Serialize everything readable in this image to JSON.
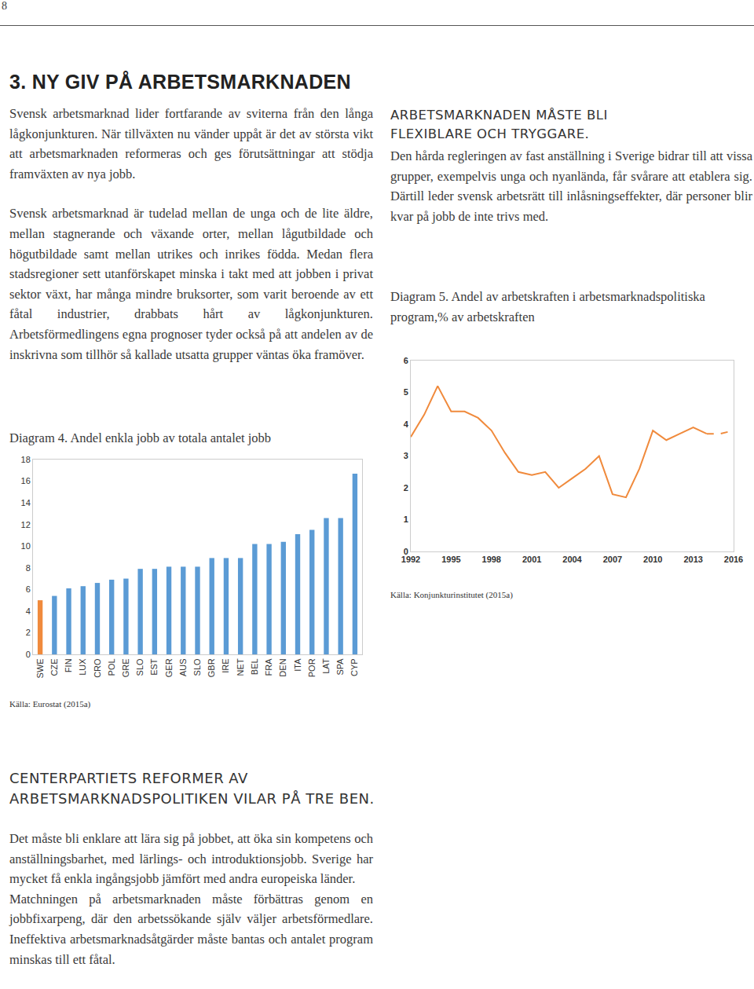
{
  "page_number": "8",
  "heading": "3. NY GIV PÅ ARBETSMARKNADEN",
  "intro_paragraphs": [
    "Svensk arbetsmarknad lider fortfarande av sviterna från den långa lågkonjunkturen. När tillväxten nu vänder uppåt är det av största vikt att arbetsmarknaden reformeras och ges förutsättningar att stödja framväxten av nya jobb.",
    "Svensk arbetsmarknad är tudelad mellan de unga och de lite äldre, mellan stagnerande och växande orter, mellan lågutbildade och högutbildade samt mellan utrikes och inrikes födda. Medan flera stadsregioner sett utanförskapet minska i takt med att jobben i privat sektor växt, har många mindre bruksorter, som varit beroende av ett fåtal industrier, drabbats hårt av lågkonjunkturen. Arbetsförmedlingens egna prognoser tyder också på att andelen av de inskrivna som tillhör så kallade utsatta grupper väntas öka framöver."
  ],
  "right_section": {
    "heading": "ARBETSMARKNADEN MÅSTE BLI FLEXIBLARE OCH TRYGGARE.",
    "paragraph": "Den hårda regleringen av fast anställning i Sverige bidrar till att vissa grupper, exempelvis unga och nyanlända, får svårare att etablera sig. Därtill leder svensk arbetsrätt till inlåsningseffekter, där personer blir kvar på jobb de inte trivs med."
  },
  "chart_data": [
    {
      "type": "bar",
      "title": "Diagram 4. Andel enkla jobb av totala antalet jobb",
      "source": "Källa: Eurostat (2015a)",
      "categories": [
        "SWE",
        "CZE",
        "FIN",
        "LUX",
        "CRO",
        "POL",
        "GRE",
        "SLO",
        "EST",
        "GER",
        "AUS",
        "SLO",
        "GBR",
        "IRE",
        "NET",
        "BEL",
        "FRA",
        "DEN",
        "ITA",
        "POR",
        "LAT",
        "SPA",
        "CYP"
      ],
      "values": [
        5.0,
        5.4,
        6.1,
        6.3,
        6.6,
        6.9,
        7.0,
        7.9,
        7.9,
        8.1,
        8.1,
        8.1,
        8.9,
        8.9,
        8.9,
        10.2,
        10.2,
        10.4,
        11.1,
        11.5,
        12.6,
        12.6,
        16.7
      ],
      "colors": [
        "#f08a3c",
        "#5b9bd5",
        "#5b9bd5",
        "#5b9bd5",
        "#5b9bd5",
        "#5b9bd5",
        "#5b9bd5",
        "#5b9bd5",
        "#5b9bd5",
        "#5b9bd5",
        "#5b9bd5",
        "#5b9bd5",
        "#5b9bd5",
        "#5b9bd5",
        "#5b9bd5",
        "#5b9bd5",
        "#5b9bd5",
        "#5b9bd5",
        "#5b9bd5",
        "#5b9bd5",
        "#5b9bd5",
        "#5b9bd5",
        "#5b9bd5"
      ],
      "ylim": [
        0,
        18
      ],
      "yticks": [
        0,
        2,
        4,
        6,
        8,
        10,
        12,
        14,
        16,
        18
      ],
      "grid": false
    },
    {
      "type": "line",
      "title": "Diagram 5. Andel av arbetskraften i arbetsmarknadspolitiska program,% av arbetskraften",
      "source": "Källa: Konjunkturinstitutet (2015a)",
      "x": [
        1992,
        1993,
        1994,
        1995,
        1996,
        1997,
        1998,
        1999,
        2000,
        2001,
        2002,
        2003,
        2004,
        2005,
        2006,
        2007,
        2008,
        2009,
        2010,
        2011,
        2012,
        2013,
        2014,
        2015,
        2016
      ],
      "series": [
        {
          "color": "#f08a3c",
          "line_style": "solid",
          "values": [
            3.6,
            4.3,
            5.2,
            4.4,
            4.4,
            4.2,
            3.8,
            3.1,
            2.5,
            2.4,
            2.5,
            2.0,
            2.3,
            2.6,
            3.0,
            1.8,
            1.7,
            2.6,
            3.8,
            3.5,
            3.7,
            3.9,
            3.7,
            null,
            null
          ]
        },
        {
          "color": "#f08a3c",
          "line_style": "dash",
          "values": [
            null,
            null,
            null,
            null,
            null,
            null,
            null,
            null,
            null,
            null,
            null,
            null,
            null,
            null,
            null,
            null,
            null,
            null,
            null,
            null,
            null,
            null,
            3.7,
            3.7,
            3.8
          ]
        }
      ],
      "xlim": [
        1992,
        2016
      ],
      "xticks": [
        1992,
        1995,
        1998,
        2001,
        2004,
        2007,
        2010,
        2013,
        2016
      ],
      "ylim": [
        0,
        6
      ],
      "yticks": [
        0,
        1,
        2,
        3,
        4,
        5,
        6
      ],
      "grid": false
    }
  ],
  "reform_section": {
    "heading": "CENTERPARTIETS REFORMER AV ARBETSMARKNADSPOLITIKEN VILAR PÅ TRE BEN.",
    "paragraphs": [
      "Det måste bli enklare att lära sig på jobbet, att öka sin kompetens och anställningsbarhet, med lärlings- och introduktionsjobb. Sverige har mycket få enkla ingångsjobb jämfört med andra europeiska länder.",
      "Matchningen på arbetsmarknaden måste förbättras genom en jobbfixarpeng, där den arbetssökande själv väljer arbetsförmedlare. Ineffektiva arbetsmarknadsåtgärder måste bantas och antalet program minskas till ett fåtal."
    ]
  }
}
